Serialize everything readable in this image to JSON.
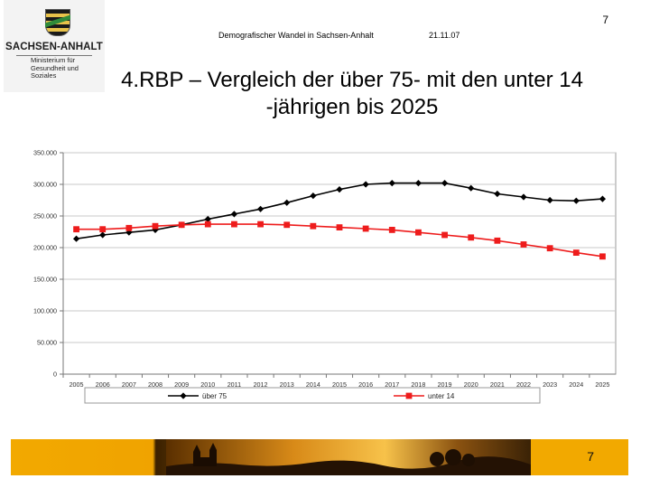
{
  "header": {
    "logo_name": "SACHSEN-ANHALT",
    "logo_sub": [
      "Ministerium für",
      "Gesundheit und Soziales"
    ],
    "subject": "Demografischer Wandel in Sachsen-Anhalt",
    "date": "21.11.07",
    "page_number": "7"
  },
  "title_line1": "4.RBP – Vergleich der über 75- mit den unter 14",
  "title_line2": "-jährigen bis 2025",
  "footer": {
    "page_number": "7"
  },
  "colors": {
    "series_black": "#000000",
    "series_red": "#ee1c1c",
    "grid": "#c8c8c8",
    "footer_orange": "#f2a900"
  },
  "chart_data": {
    "type": "line",
    "title": "",
    "xlabel": "",
    "ylabel": "",
    "ylim": [
      0,
      350000
    ],
    "yticks": [
      0,
      50000,
      100000,
      150000,
      200000,
      250000,
      300000,
      350000
    ],
    "ytick_labels": [
      "0",
      "50.000",
      "100.000",
      "150.000",
      "200.000",
      "250.000",
      "300.000",
      "350.000"
    ],
    "grid": true,
    "legend_position": "bottom",
    "categories": [
      "2005",
      "2006",
      "2007",
      "2008",
      "2009",
      "2010",
      "2011",
      "2012",
      "2013",
      "2014",
      "2015",
      "2016",
      "2017",
      "2018",
      "2019",
      "2020",
      "2021",
      "2022",
      "2023",
      "2024",
      "2025"
    ],
    "series": [
      {
        "name": "über 75",
        "marker": "diamond",
        "color": "#000000",
        "values": [
          214000,
          220000,
          224000,
          228000,
          236000,
          245000,
          253000,
          261000,
          271000,
          282000,
          292000,
          300000,
          302000,
          302000,
          302000,
          294000,
          285000,
          280000,
          275000,
          274000,
          277000
        ]
      },
      {
        "name": "unter 14",
        "marker": "square",
        "color": "#ee1c1c",
        "values": [
          229000,
          229000,
          231000,
          234000,
          236000,
          237000,
          237000,
          237000,
          236000,
          234000,
          232000,
          230000,
          228000,
          224000,
          220000,
          216000,
          211000,
          205000,
          199000,
          192000,
          186000
        ]
      }
    ]
  }
}
